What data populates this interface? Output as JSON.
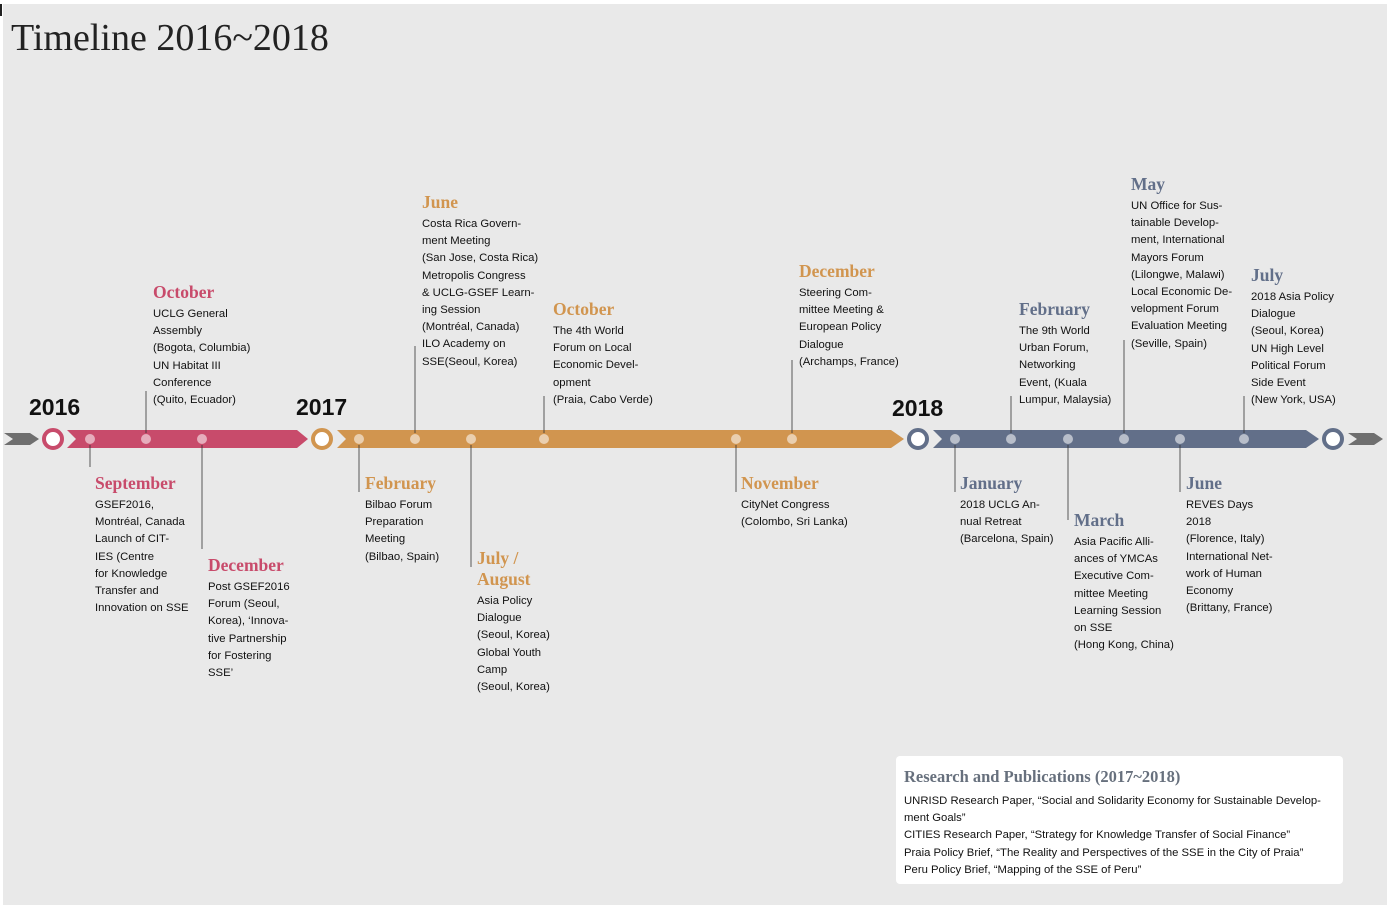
{
  "title": "Timeline 2016~2018",
  "years": [
    "2016",
    "2017",
    "2018"
  ],
  "colors": {
    "y2016": "#c84b6b",
    "y2017": "#d1954f",
    "y2018": "#626f89",
    "arrow": "#6f6f6f"
  },
  "events": [
    {
      "month": "September",
      "desc": "GSEF2016,\nMontréal, Canada\nLaunch of CIT-\nIES (Centre\nfor Knowledge\nTransfer and\nInnovation on SSE"
    },
    {
      "month": "October",
      "desc": "UCLG General\nAssembly\n(Bogota, Columbia)\nUN Habitat III\nConference\n(Quito, Ecuador)"
    },
    {
      "month": "December",
      "desc": "Post GSEF2016\nForum (Seoul,\nKorea), ‘Innova-\ntive Partnership\nfor Fostering\nSSE’"
    },
    {
      "month": "February",
      "desc": "Bilbao Forum\nPreparation\nMeeting\n(Bilbao, Spain)"
    },
    {
      "month": "June",
      "desc": "Costa Rica Govern-\nment Meeting\n(San Jose, Costa Rica)\nMetropolis Congress\n& UCLG-GSEF Learn-\ning Session\n(Montréal, Canada)\nILO Academy on\nSSE(Seoul, Korea)"
    },
    {
      "month": "July /\nAugust",
      "desc": "Asia Policy\nDialogue\n(Seoul, Korea)\nGlobal Youth\nCamp\n(Seoul, Korea)"
    },
    {
      "month": "October",
      "desc": "The 4th World\nForum on Local\nEconomic Devel-\nopment\n(Praia, Cabo Verde)"
    },
    {
      "month": "November",
      "desc": "CityNet Congress\n(Colombo, Sri Lanka)"
    },
    {
      "month": "December",
      "desc": "Steering Com-\nmittee Meeting &\nEuropean Policy\nDialogue\n(Archamps, France)"
    },
    {
      "month": "January",
      "desc": "2018 UCLG An-\nnual Retreat\n(Barcelona, Spain)"
    },
    {
      "month": "February",
      "desc": "The 9th World\nUrban Forum,\nNetworking\nEvent, (Kuala\nLumpur, Malaysia)"
    },
    {
      "month": "March",
      "desc": "Asia Pacific Alli-\nances of YMCAs\nExecutive Com-\nmittee Meeting\nLearning Session\non SSE\n(Hong Kong, China)"
    },
    {
      "month": "May",
      "desc": "UN Office for Sus-\ntainable Develop-\nment, International\nMayors Forum\n(Lilongwe, Malawi)\nLocal Economic De-\nvelopment Forum\nEvaluation Meeting\n(Seville, Spain)"
    },
    {
      "month": "June",
      "desc": "REVES Days\n2018\n(Florence, Italy)\nInternational Net-\nwork of Human\nEconomy\n(Brittany, France)"
    },
    {
      "month": "July",
      "desc": "2018 Asia Policy\nDialogue\n(Seoul, Korea)\nUN High Level\nPolitical Forum\nSide Event\n(New York, USA)"
    }
  ],
  "publications": {
    "title": "Research and Publications (2017~2018)",
    "items": [
      "UNRISD Research Paper, “Social and Solidarity Economy for Sustainable Develop-ment Goals”",
      "CITIES Research Paper, “Strategy for Knowledge Transfer of Social Finance”",
      "Praia Policy Brief, “The Reality and Perspectives of the SSE in the City of Praia”",
      "Peru Policy Brief, “Mapping of the SSE of Peru”"
    ]
  }
}
